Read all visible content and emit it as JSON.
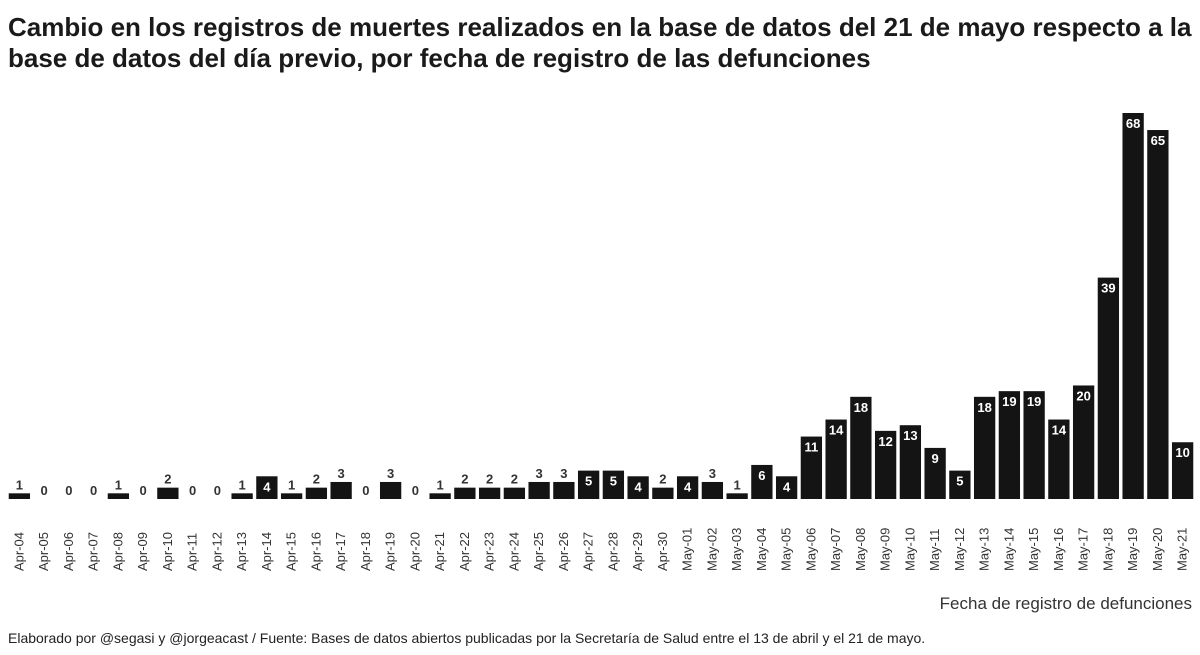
{
  "title": "Cambio en los registros de muertes realizados en la base de datos del 21 de mayo respecto a la base de datos del día previo, por fecha de registro de las defunciones",
  "xlabel": "Fecha de registro de defunciones",
  "footer": "Elaborado por @segasi y @jorgeacast / Fuente: Bases de datos abiertos publicadas por la Secretaría de Salud entre el 13 de abril y el 21 de mayo.",
  "colors": {
    "bar": "#141414",
    "label_inside": "#ffffff",
    "label_outside": "#333333"
  },
  "chart_data": {
    "type": "bar",
    "title": "Cambio en los registros de muertes realizados en la base de datos del 21 de mayo respecto a la base de datos del día previo, por fecha de registro de las defunciones",
    "xlabel": "Fecha de registro de defunciones",
    "ylabel": "",
    "ylim": [
      0,
      68
    ],
    "grid": false,
    "categories": [
      "Apr-04",
      "Apr-05",
      "Apr-06",
      "Apr-07",
      "Apr-08",
      "Apr-09",
      "Apr-10",
      "Apr-11",
      "Apr-12",
      "Apr-13",
      "Apr-14",
      "Apr-15",
      "Apr-16",
      "Apr-17",
      "Apr-18",
      "Apr-19",
      "Apr-20",
      "Apr-21",
      "Apr-22",
      "Apr-23",
      "Apr-24",
      "Apr-25",
      "Apr-26",
      "Apr-27",
      "Apr-28",
      "Apr-29",
      "Apr-30",
      "May-01",
      "May-02",
      "May-03",
      "May-04",
      "May-05",
      "May-06",
      "May-07",
      "May-08",
      "May-09",
      "May-10",
      "May-11",
      "May-12",
      "May-13",
      "May-14",
      "May-15",
      "May-16",
      "May-17",
      "May-18",
      "May-19",
      "May-20",
      "May-21"
    ],
    "values": [
      1,
      0,
      0,
      0,
      1,
      0,
      2,
      0,
      0,
      1,
      4,
      1,
      2,
      3,
      0,
      3,
      0,
      1,
      2,
      2,
      2,
      3,
      3,
      5,
      5,
      4,
      2,
      4,
      3,
      1,
      6,
      4,
      11,
      14,
      18,
      12,
      13,
      9,
      5,
      18,
      19,
      19,
      14,
      20,
      39,
      68,
      65,
      10
    ]
  }
}
